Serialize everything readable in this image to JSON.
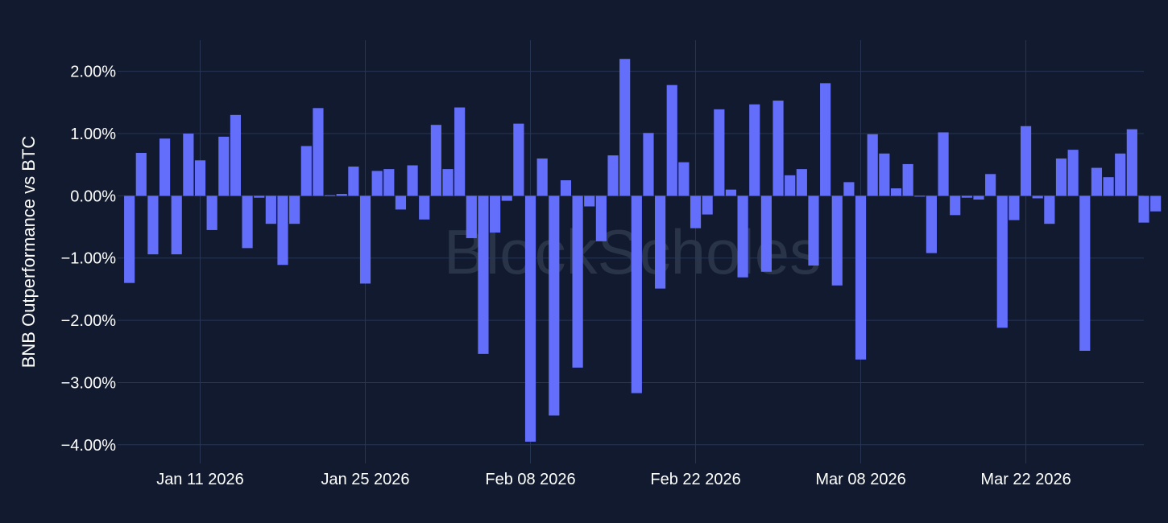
{
  "chart_data": {
    "type": "bar",
    "title": "",
    "xlabel": "",
    "ylabel": "BNB Outperformance vs BTC",
    "ylim": [
      -4.3,
      2.5
    ],
    "xlim": [
      "2026-01-04",
      "2026-04-01"
    ],
    "y_ticks": [
      2,
      1,
      0,
      -1,
      -2,
      -3,
      -4
    ],
    "y_tick_labels": [
      "2.00%",
      "1.00%",
      "0.00%",
      "−1.00%",
      "−2.00%",
      "−3.00%",
      "−4.00%"
    ],
    "x_ticks": [
      "2026-01-11",
      "2026-01-25",
      "2026-02-08",
      "2026-02-22",
      "2026-03-08",
      "2026-03-22"
    ],
    "x_tick_labels": [
      "Jan 11 2026",
      "Jan 25 2026",
      "Feb 08 2026",
      "Feb 22 2026",
      "Mar 08 2026",
      "Mar 22 2026"
    ],
    "grid": true,
    "watermark": "BlockScholes",
    "colors": {
      "bar": "#636efa",
      "background": "#111a2e",
      "grid": "#283654"
    },
    "start_date": "2026-01-05",
    "values": [
      -1.4,
      0.69,
      -0.94,
      0.92,
      -0.94,
      1.0,
      0.57,
      -0.55,
      0.95,
      1.3,
      -0.84,
      -0.03,
      -0.45,
      -1.11,
      -0.45,
      0.8,
      1.41,
      0.01,
      0.03,
      0.47,
      -1.41,
      0.4,
      0.43,
      -0.22,
      0.49,
      -0.38,
      1.14,
      0.43,
      1.42,
      -0.68,
      -2.54,
      -0.59,
      -0.08,
      1.16,
      -3.95,
      0.6,
      -3.53,
      0.25,
      -2.76,
      -0.17,
      -0.73,
      0.65,
      2.2,
      -3.17,
      1.01,
      -1.49,
      1.78,
      0.54,
      -0.52,
      -0.3,
      1.39,
      0.1,
      -1.31,
      1.47,
      -1.22,
      1.53,
      0.33,
      0.43,
      -1.12,
      1.81,
      -1.44,
      0.22,
      -2.63,
      0.99,
      0.68,
      0.12,
      0.51,
      -0.01,
      -0.92,
      1.02,
      -0.31,
      -0.03,
      -0.06,
      0.35,
      -2.12,
      -0.39,
      1.12,
      -0.04,
      -0.45,
      0.6,
      0.74,
      -2.49,
      0.45,
      0.3,
      0.68,
      1.07,
      -0.43,
      -0.25
    ]
  }
}
